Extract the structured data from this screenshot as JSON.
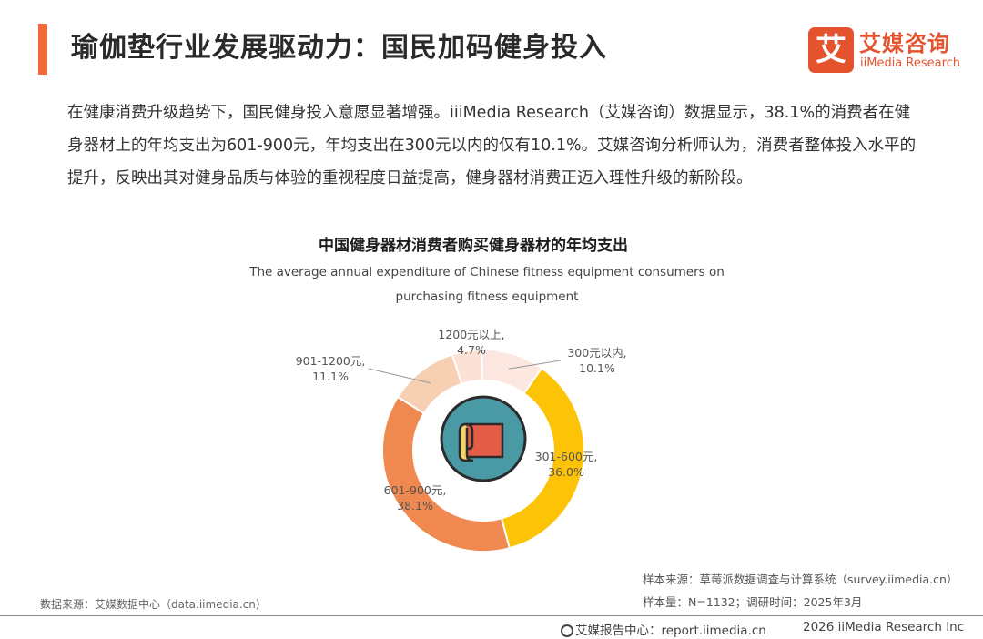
{
  "header": {
    "title": "瑜伽垫行业发展驱动力：国民加码健身投入",
    "logo_mark": "艾",
    "logo_cn": "艾媒咨询",
    "logo_en": "iiMedia Research"
  },
  "intro": "在健康消费升级趋势下，国民健身投入意愿显著增强。iiiMedia Research（艾媒咨询）数据显示，38.1%的消费者在健身器材上的年均支出为601-900元，年均支出在300元以内的仅有10.1%。艾媒咨询分析师认为，消费者整体投入水平的提升，反映出其对健身品质与体验的重视程度日益提高，健身器材消费正迈入理性升级的新阶段。",
  "chart_data": {
    "type": "pie",
    "title": "中国健身器材消费者购买健身器材的年均支出",
    "subtitle": "The average annual expenditure of Chinese fitness equipment consumers on purchasing fitness equipment",
    "donut": true,
    "slices": [
      {
        "label": "300元以内,",
        "value": 10.1,
        "value_label": "10.1%",
        "color": "#fbe7df"
      },
      {
        "label": "301-600元,",
        "value": 36.0,
        "value_label": "36.0%",
        "color": "#fdc407"
      },
      {
        "label": "601-900元,",
        "value": 38.1,
        "value_label": "38.1%",
        "color": "#f0894f"
      },
      {
        "label": "901-1200元,",
        "value": 11.1,
        "value_label": "11.1%",
        "color": "#f7cfb2"
      },
      {
        "label": "1200元以上,",
        "value": 4.7,
        "value_label": "4.7%",
        "color": "#fbe1d6"
      }
    ],
    "center_icon": "scroll-map-icon"
  },
  "notes": {
    "sample_source": "样本来源：草莓派数据调查与计算系统（survey.iimedia.cn）",
    "sample_size": "样本量：N=1132；调研时间：2025年3月",
    "data_source": "数据来源：艾媒数据中心（data.iimedia.cn）"
  },
  "footer": {
    "report_center": "艾媒报告中心：report.iimedia.cn",
    "copyright": "2026  iiMedia Research  Inc"
  },
  "colors": {
    "accent": "#f2683a",
    "brand": "#e5532e",
    "center_circle": "#4a9aa5"
  }
}
